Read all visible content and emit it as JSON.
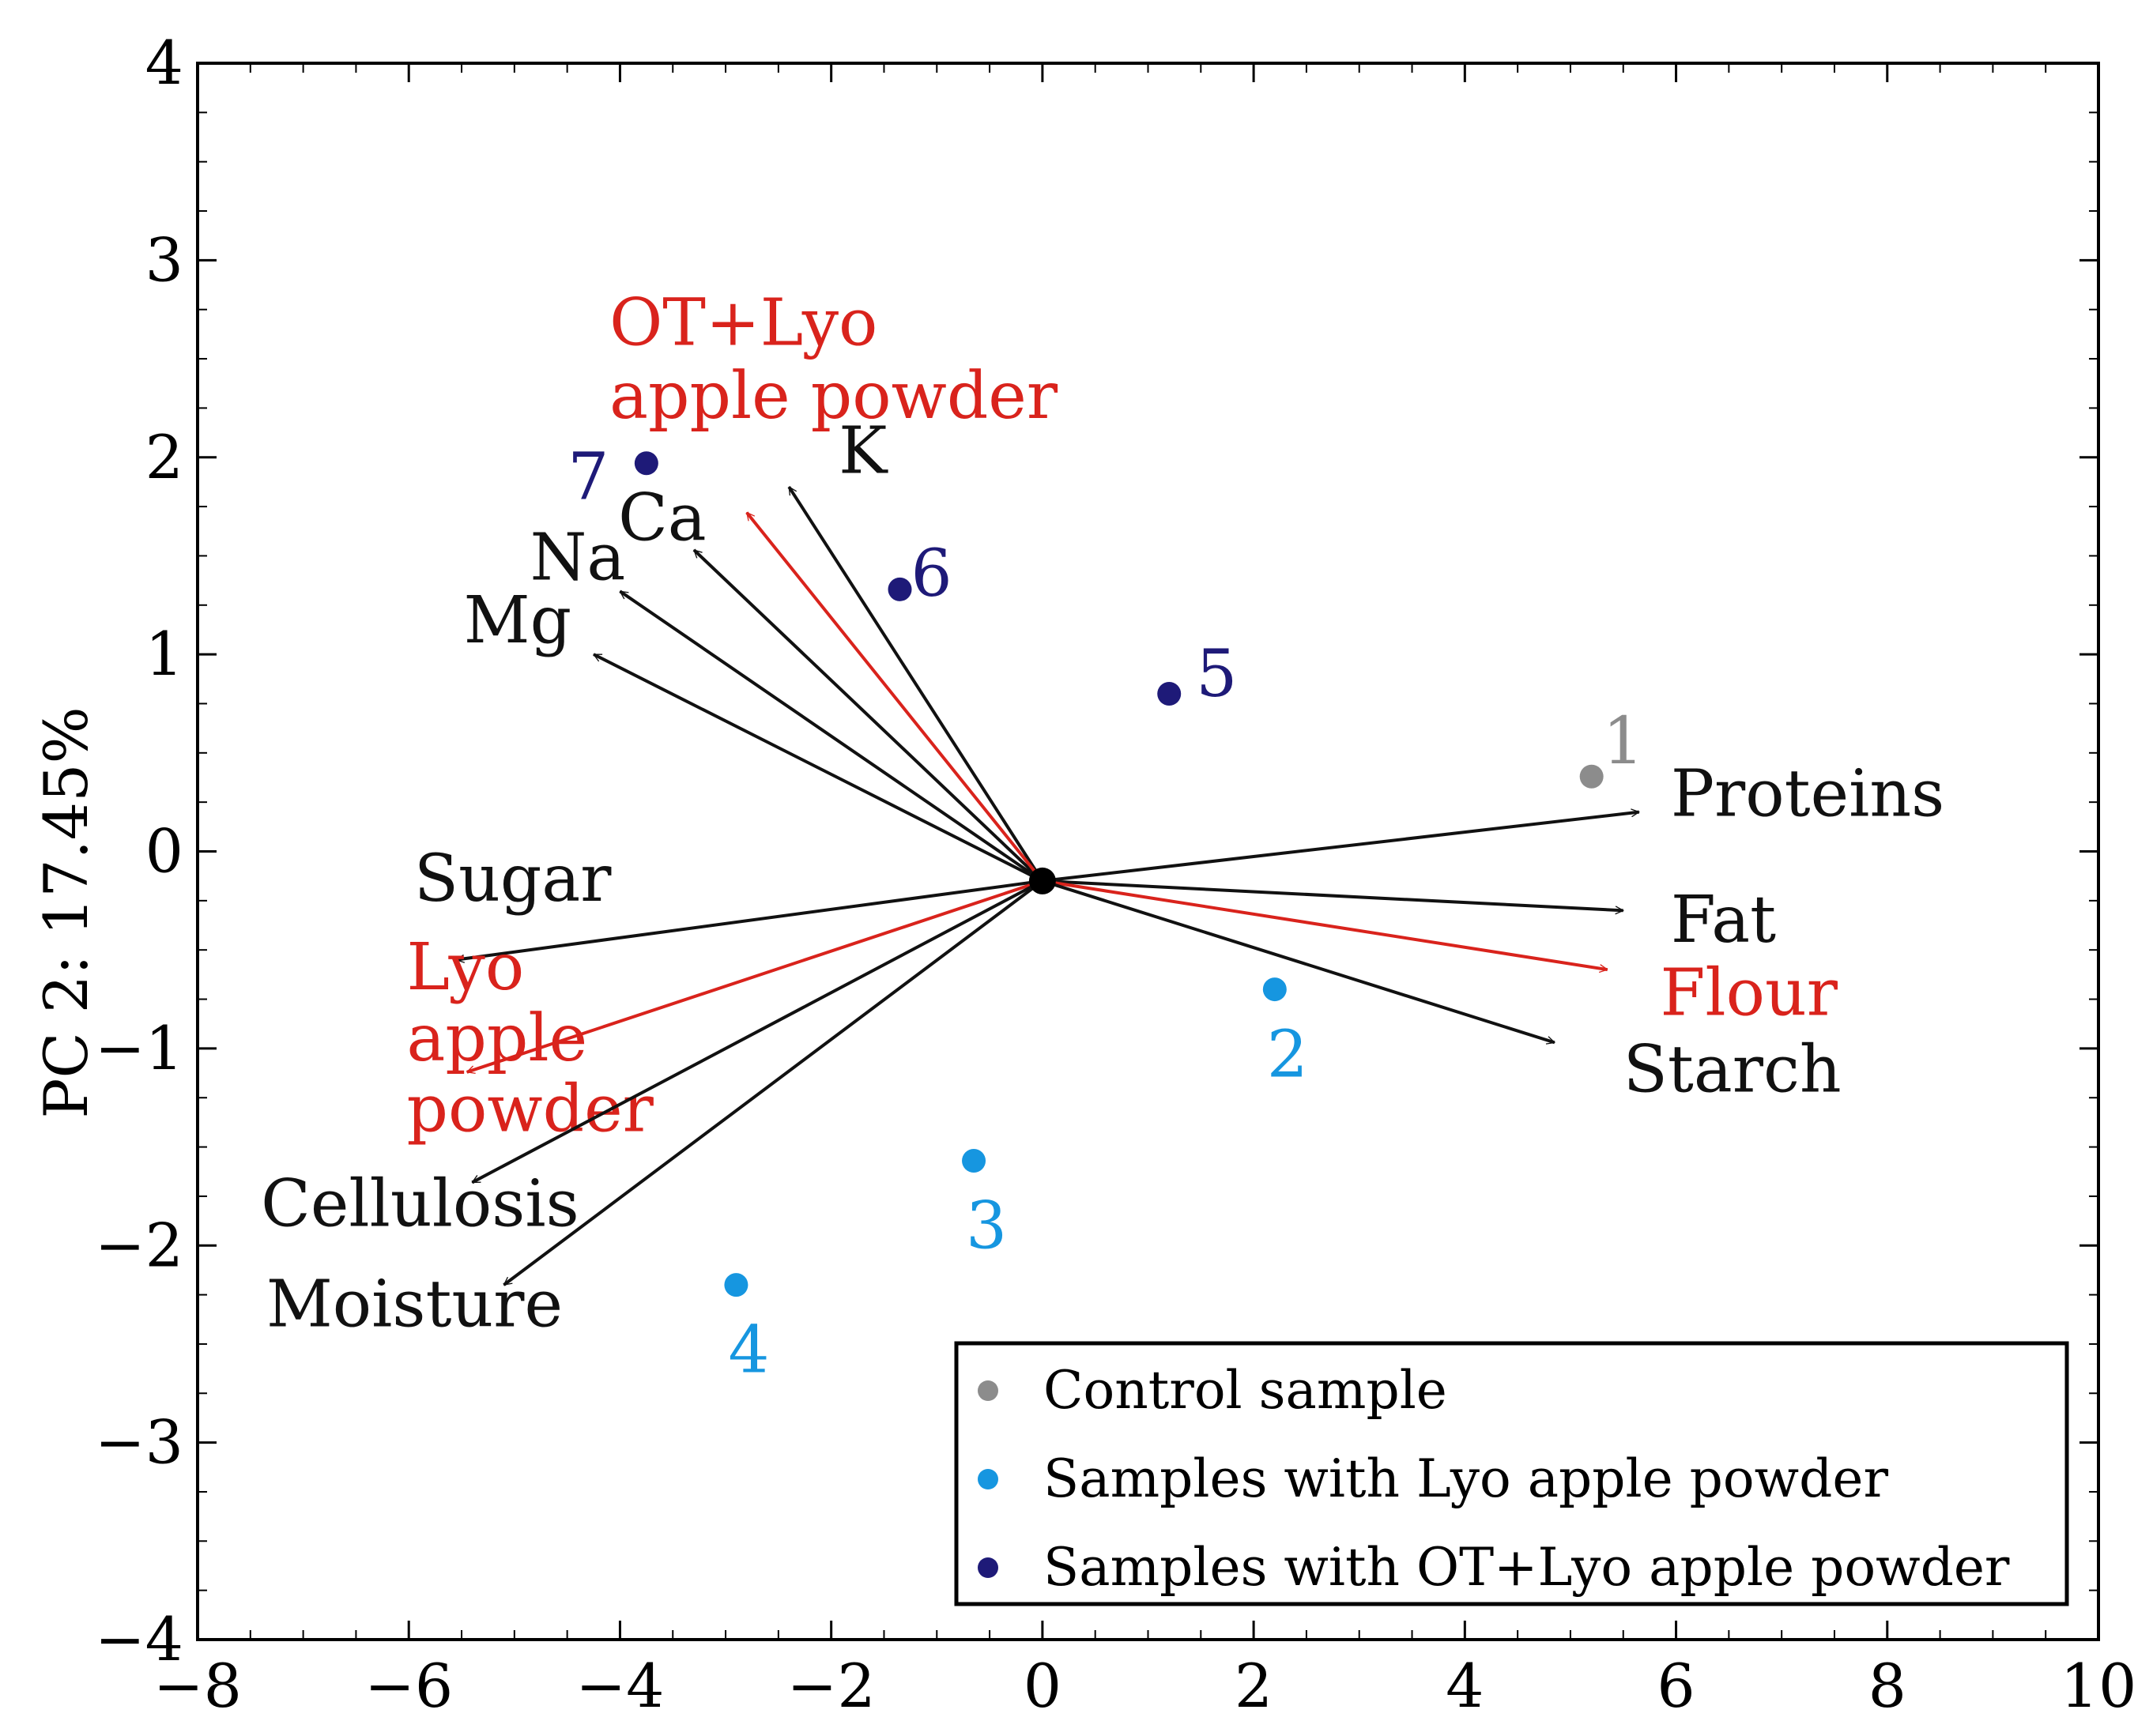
{
  "colors": {
    "black_vector": "#111111",
    "red_vector": "#d9231c",
    "control": "#8c8c8c",
    "lyo": "#1696e0",
    "ot_lyo": "#1e1a78",
    "axis": "#000000"
  },
  "chart_data": {
    "type": "scatter",
    "subtype": "pca-biplot",
    "title": "",
    "xlabel": "",
    "ylabel": "PC 2: 17.45%",
    "xlim": [
      -8,
      10
    ],
    "ylim": [
      -4,
      4
    ],
    "grid": false,
    "legend_position": "bottom-right",
    "x_ticks": [
      {
        "value": -8,
        "label": "−8"
      },
      {
        "value": -6,
        "label": "−6"
      },
      {
        "value": -4,
        "label": "−4"
      },
      {
        "value": -2,
        "label": "−2"
      },
      {
        "value": 0,
        "label": "0"
      },
      {
        "value": 2,
        "label": "2"
      },
      {
        "value": 4,
        "label": "4"
      },
      {
        "value": 6,
        "label": "6"
      },
      {
        "value": 8,
        "label": "8"
      },
      {
        "value": 10,
        "label": "10"
      }
    ],
    "y_ticks": [
      {
        "value": -4,
        "label": "−4"
      },
      {
        "value": -3,
        "label": "−3"
      },
      {
        "value": -2,
        "label": "−2"
      },
      {
        "value": -1,
        "label": "−1"
      },
      {
        "value": 0,
        "label": "0"
      },
      {
        "value": 1,
        "label": "1"
      },
      {
        "value": 2,
        "label": "2"
      },
      {
        "value": 3,
        "label": "3"
      },
      {
        "value": 4,
        "label": "4"
      }
    ],
    "origin": {
      "x": 0,
      "y": -0.15
    },
    "vectors": [
      {
        "name": "K",
        "x": -2.4,
        "y": 1.85,
        "color": "black",
        "label_lines": [
          "K"
        ],
        "label_x": -1.7,
        "label_y": 1.92,
        "anchor": "middle"
      },
      {
        "name": "Ca",
        "x": -3.3,
        "y": 1.53,
        "color": "black",
        "label_lines": [
          "Ca"
        ],
        "label_x": -3.6,
        "label_y": 1.58,
        "anchor": "middle"
      },
      {
        "name": "Na",
        "x": -4.0,
        "y": 1.32,
        "color": "black",
        "label_lines": [
          "Na"
        ],
        "label_x": -4.4,
        "label_y": 1.38,
        "anchor": "middle"
      },
      {
        "name": "Mg",
        "x": -4.25,
        "y": 1.0,
        "color": "black",
        "label_lines": [
          "Mg"
        ],
        "label_x": -4.97,
        "label_y": 1.06,
        "anchor": "middle"
      },
      {
        "name": "OT+Lyo apple powder",
        "x": -2.8,
        "y": 1.72,
        "color": "red",
        "label_lines": [
          "OT+Lyo",
          "apple powder"
        ],
        "label_x": -4.1,
        "label_y": 2.57,
        "anchor": "start",
        "line_gap": 0.37
      },
      {
        "name": "Proteins",
        "x": 5.65,
        "y": 0.2,
        "color": "black",
        "label_lines": [
          "Proteins"
        ],
        "label_x": 5.95,
        "label_y": 0.18,
        "anchor": "start"
      },
      {
        "name": "Fat",
        "x": 5.5,
        "y": -0.3,
        "color": "black",
        "label_lines": [
          "Fat"
        ],
        "label_x": 5.95,
        "label_y": -0.46,
        "anchor": "start"
      },
      {
        "name": "Flour",
        "x": 5.35,
        "y": -0.6,
        "color": "red",
        "label_lines": [
          "Flour"
        ],
        "label_x": 5.85,
        "label_y": -0.83,
        "anchor": "start"
      },
      {
        "name": "Starch",
        "x": 4.85,
        "y": -0.97,
        "color": "black",
        "label_lines": [
          "Starch"
        ],
        "label_x": 5.5,
        "label_y": -1.22,
        "anchor": "start"
      },
      {
        "name": "Sugar",
        "x": -5.55,
        "y": -0.55,
        "color": "black",
        "label_lines": [
          "Sugar"
        ],
        "label_x": -5.95,
        "label_y": -0.25,
        "anchor": "start"
      },
      {
        "name": "Lyo apple powder",
        "x": -5.45,
        "y": -1.12,
        "color": "red",
        "label_lines": [
          "Lyo",
          "apple",
          "powder"
        ],
        "label_x": -6.02,
        "label_y": -0.7,
        "anchor": "start",
        "line_gap": 0.36
      },
      {
        "name": "Cellulosis",
        "x": -5.4,
        "y": -1.68,
        "color": "black",
        "label_lines": [
          "Cellulosis"
        ],
        "label_x": -7.4,
        "label_y": -1.9,
        "anchor": "start"
      },
      {
        "name": "Moisture",
        "x": -5.1,
        "y": -2.2,
        "color": "black",
        "label_lines": [
          "Moisture"
        ],
        "label_x": -7.35,
        "label_y": -2.41,
        "anchor": "start"
      }
    ],
    "series": [
      {
        "name": "Control sample",
        "color_key": "control",
        "points": [
          {
            "label": "1",
            "x": 5.2,
            "y": 0.38,
            "label_dx": 0.3,
            "label_dy": 0.18
          }
        ]
      },
      {
        "name": "Samples with Lyo apple powder",
        "color_key": "lyo",
        "points": [
          {
            "label": "2",
            "x": 2.2,
            "y": -0.7,
            "label_dx": 0.12,
            "label_dy": -0.33
          },
          {
            "label": "3",
            "x": -0.65,
            "y": -1.57,
            "label_dx": 0.12,
            "label_dy": -0.33
          },
          {
            "label": "4",
            "x": -2.9,
            "y": -2.2,
            "label_dx": 0.12,
            "label_dy": -0.33
          }
        ]
      },
      {
        "name": "Samples with OT+Lyo apple powder",
        "color_key": "ot_lyo",
        "points": [
          {
            "label": "5",
            "x": 1.2,
            "y": 0.8,
            "label_dx": 0.45,
            "label_dy": 0.1
          },
          {
            "label": "6",
            "x": -1.35,
            "y": 1.33,
            "label_dx": 0.3,
            "label_dy": 0.08
          },
          {
            "label": "7",
            "x": -3.75,
            "y": 1.97,
            "label_dx": -0.55,
            "label_dy": -0.07
          }
        ]
      }
    ],
    "legend": [
      {
        "label": "Control sample",
        "color_key": "control"
      },
      {
        "label": "Samples with Lyo apple powder",
        "color_key": "lyo"
      },
      {
        "label": "Samples with OT+Lyo apple powder",
        "color_key": "ot_lyo"
      }
    ]
  }
}
